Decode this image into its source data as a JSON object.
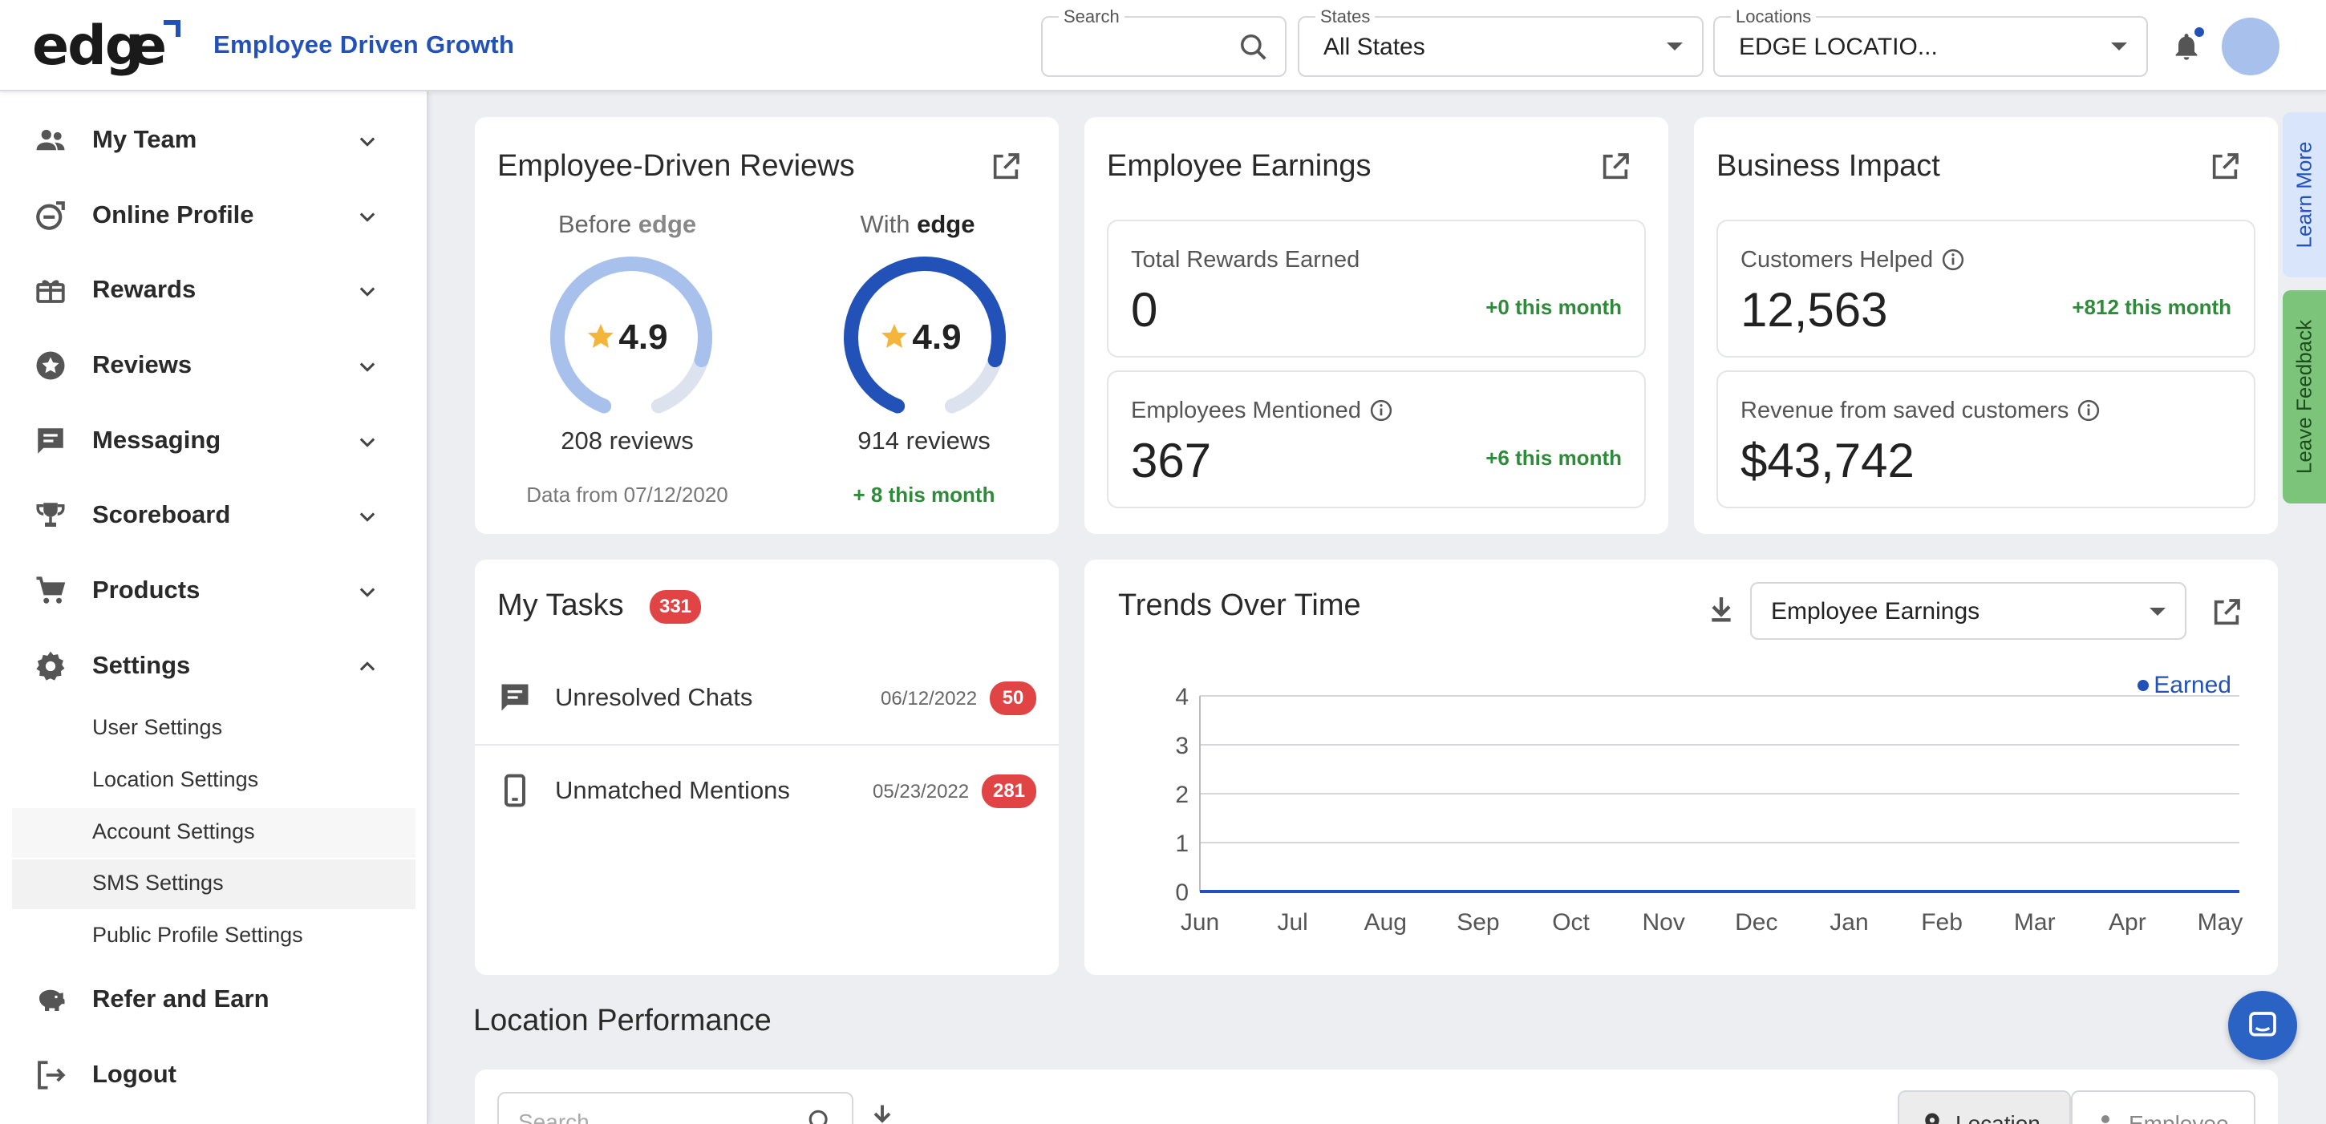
{
  "header": {
    "logo_text": "edge",
    "tagline": "Employee Driven Growth",
    "search": {
      "label": "Search",
      "value": ""
    },
    "states": {
      "label": "States",
      "value": "All States"
    },
    "locations": {
      "label": "Locations",
      "value": "EDGE LOCATIO..."
    }
  },
  "sidebar": {
    "items": [
      {
        "label": "My Team",
        "icon": "team-icon"
      },
      {
        "label": "Online Profile",
        "icon": "online-profile-icon"
      },
      {
        "label": "Rewards",
        "icon": "gift-icon"
      },
      {
        "label": "Reviews",
        "icon": "star-badge-icon"
      },
      {
        "label": "Messaging",
        "icon": "chat-icon"
      },
      {
        "label": "Scoreboard",
        "icon": "trophy-icon"
      },
      {
        "label": "Products",
        "icon": "cart-icon"
      },
      {
        "label": "Settings",
        "icon": "gear-icon"
      }
    ],
    "settings_sub": [
      "User Settings",
      "Location Settings",
      "Account Settings",
      "SMS Settings",
      "Public Profile Settings"
    ],
    "bottom": [
      {
        "label": "Refer and Earn",
        "icon": "piggy-bank-icon"
      },
      {
        "label": "Logout",
        "icon": "logout-icon"
      }
    ]
  },
  "reviews_card": {
    "title": "Employee-Driven Reviews",
    "before": {
      "prefix": "Before",
      "brand": "edge",
      "rating": "4.9",
      "count": "208 reviews",
      "foot": "Data from 07/12/2020",
      "fill": 0.84
    },
    "with": {
      "prefix": "With",
      "brand": "edge",
      "rating": "4.9",
      "count": "914 reviews",
      "foot": "+ 8 this month",
      "fill": 0.84
    }
  },
  "earnings_card": {
    "title": "Employee Earnings",
    "stats": [
      {
        "label": "Total Rewards Earned",
        "value": "0",
        "delta": "+0 this month"
      },
      {
        "label": "Employees Mentioned",
        "value": "367",
        "delta": "+6 this month"
      }
    ]
  },
  "impact_card": {
    "title": "Business Impact",
    "stats": [
      {
        "label": "Customers Helped",
        "value": "12,563",
        "delta": "+812 this month"
      },
      {
        "label": "Revenue from saved customers",
        "value": "$43,742",
        "delta": ""
      }
    ]
  },
  "tasks_card": {
    "title": "My Tasks",
    "count": "331",
    "rows": [
      {
        "label": "Unresolved Chats",
        "date": "06/12/2022",
        "count": "50"
      },
      {
        "label": "Unmatched Mentions",
        "date": "05/23/2022",
        "count": "281"
      }
    ]
  },
  "trends_card": {
    "title": "Trends Over Time",
    "dropdown_value": "Employee Earnings"
  },
  "chart_data": {
    "type": "line",
    "title": "Trends Over Time",
    "categories": [
      "Jun",
      "Jul",
      "Aug",
      "Sep",
      "Oct",
      "Nov",
      "Dec",
      "Jan",
      "Feb",
      "Mar",
      "Apr",
      "May"
    ],
    "series": [
      {
        "name": "Earned",
        "values": [
          0,
          0,
          0,
          0,
          0,
          0,
          0,
          0,
          0,
          0,
          0,
          0
        ]
      }
    ],
    "ylim": [
      0,
      4
    ],
    "yticks": [
      "0",
      "1",
      "2",
      "3",
      "4"
    ],
    "legend": "top-right",
    "color": "#2251b8"
  },
  "location_performance": {
    "title": "Location Performance",
    "search_placeholder": "Search",
    "toggle": [
      "Location",
      "Employee"
    ]
  },
  "side_tabs": {
    "learn_more": "Learn More",
    "feedback": "Leave Feedback"
  },
  "colors": {
    "brand": "#2251b8",
    "positive": "#2e8b3a",
    "badge": "#e04444",
    "gauge_light": "#a8c0ec",
    "star": "#f4b63a"
  }
}
